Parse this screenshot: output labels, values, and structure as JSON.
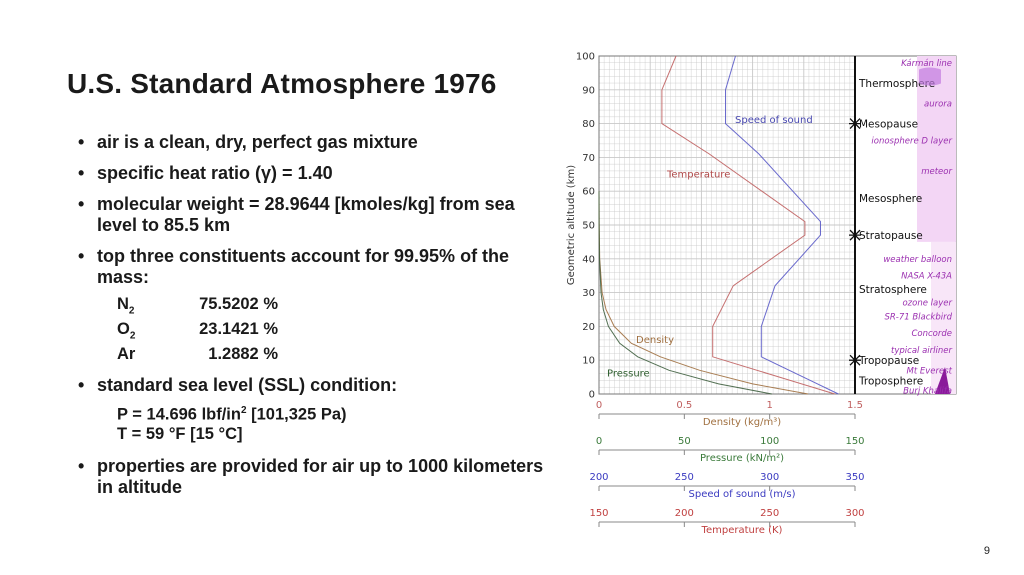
{
  "slide": {
    "title": "U.S. Standard Atmosphere 1976",
    "page_number": "9",
    "bullets": [
      "air is a clean, dry, perfect gas mixture",
      "specific heat ratio (γ) = 1.40",
      "molecular weight = 28.9644 [kmoles/kg] from sea level to 85.5 km",
      "top three constituents account for 99.95% of the mass:",
      "standard sea level (SSL) condition:",
      "properties are provided for air up to 1000 kilometers in altitude"
    ],
    "constituents": [
      {
        "symbol": "N",
        "subscript": "2",
        "value": "75.5202 %"
      },
      {
        "symbol": "O",
        "subscript": "2",
        "value": "23.1421 %"
      },
      {
        "symbol": "Ar",
        "subscript": "",
        "value": "1.2882 %"
      }
    ],
    "ssl": {
      "pressure_prefix": "P = 14.696 lbf/in",
      "pressure_sup": "2",
      "pressure_suffix": " [101,325 Pa)",
      "temperature": "T = 59 °F [15 °C]"
    }
  },
  "chart_data": {
    "type": "line",
    "ylabel": "Geometric altitude (km)",
    "ylim": [
      0,
      100
    ],
    "y_ticks": [
      "0",
      "10",
      "20",
      "30",
      "40",
      "50",
      "60",
      "70",
      "80",
      "90",
      "100"
    ],
    "colors": {
      "temperature": "#c06060",
      "speed": "#5a5ac8",
      "density": "#a07040",
      "pressure": "#406040",
      "layer_text": "#9b30b0",
      "grid": "#c8c8c8"
    },
    "axes": [
      {
        "label": "Density (kg/m³)",
        "ticks": [
          "0",
          "0.5",
          "1",
          "1.5"
        ],
        "min": 0,
        "max": 1.5,
        "color": "#c06060",
        "label_color": "#a07040"
      },
      {
        "label": "Pressure (kN/m²)",
        "ticks": [
          "0",
          "50",
          "100",
          "150"
        ],
        "min": 0,
        "max": 150,
        "color": "#3a7a3a",
        "label_color": "#3a7a3a"
      },
      {
        "label": "Speed of sound (m/s)",
        "ticks": [
          "200",
          "250",
          "300",
          "350"
        ],
        "min": 200,
        "max": 350,
        "color": "#3a3ac0",
        "label_color": "#3a3ac0"
      },
      {
        "label": "Temperature (K)",
        "ticks": [
          "150",
          "200",
          "250",
          "300"
        ],
        "min": 150,
        "max": 300,
        "color": "#c04040",
        "label_color": "#c04040"
      }
    ],
    "series": [
      {
        "name": "Temperature",
        "points": [
          [
            288.15,
            0
          ],
          [
            216.65,
            11
          ],
          [
            216.65,
            20
          ],
          [
            228.65,
            32
          ],
          [
            270.65,
            47
          ],
          [
            270.65,
            51
          ],
          [
            214.65,
            71
          ],
          [
            186.87,
            80
          ],
          [
            186.87,
            90
          ],
          [
            195.1,
            100
          ]
        ]
      },
      {
        "name": "Speed of sound",
        "points": [
          [
            340.3,
            0
          ],
          [
            295.1,
            11
          ],
          [
            295.1,
            20
          ],
          [
            303.1,
            32
          ],
          [
            329.8,
            47
          ],
          [
            329.8,
            51
          ],
          [
            293.7,
            71
          ],
          [
            274.1,
            80
          ],
          [
            274.1,
            90
          ],
          [
            280,
            100
          ]
        ]
      },
      {
        "name": "Density",
        "points": [
          [
            1.225,
            0
          ],
          [
            0.9,
            3
          ],
          [
            0.59,
            7
          ],
          [
            0.36,
            11
          ],
          [
            0.19,
            15
          ],
          [
            0.089,
            20
          ],
          [
            0.041,
            25
          ],
          [
            0.018,
            30
          ],
          [
            0.004,
            40
          ],
          [
            0.001,
            50
          ],
          [
            0,
            60
          ]
        ]
      },
      {
        "name": "Pressure",
        "points": [
          [
            101.3,
            0
          ],
          [
            70.1,
            3
          ],
          [
            41.1,
            7
          ],
          [
            22.7,
            11
          ],
          [
            12.1,
            15
          ],
          [
            5.5,
            20
          ],
          [
            2.5,
            25
          ],
          [
            1.2,
            30
          ],
          [
            0.29,
            40
          ],
          [
            0.08,
            50
          ],
          [
            0,
            60
          ]
        ]
      }
    ],
    "layers": [
      {
        "label": "Thermosphere",
        "altitude": 92
      },
      {
        "label": "Mesopause",
        "altitude": 80
      },
      {
        "label": "Mesosphere",
        "altitude": 58
      },
      {
        "label": "Stratopause",
        "altitude": 47
      },
      {
        "label": "Stratosphere",
        "altitude": 31
      },
      {
        "label": "Tropopause",
        "altitude": 10
      },
      {
        "label": "Troposphere",
        "altitude": 4
      }
    ],
    "annotations": [
      {
        "label": "Kármán line",
        "altitude": 98
      },
      {
        "label": "aurora",
        "altitude": 86
      },
      {
        "label": "ionosphere D layer",
        "altitude": 75
      },
      {
        "label": "meteor",
        "altitude": 66
      },
      {
        "label": "weather balloon",
        "altitude": 40
      },
      {
        "label": "NASA X-43A",
        "altitude": 35
      },
      {
        "label": "ozone layer",
        "altitude": 27
      },
      {
        "label": "SR-71 Blackbird",
        "altitude": 23
      },
      {
        "label": "Concorde",
        "altitude": 18
      },
      {
        "label": "typical airliner",
        "altitude": 13
      },
      {
        "label": "Mt Everest",
        "altitude": 7
      },
      {
        "label": "Burj Khalifa",
        "altitude": 1
      }
    ]
  }
}
